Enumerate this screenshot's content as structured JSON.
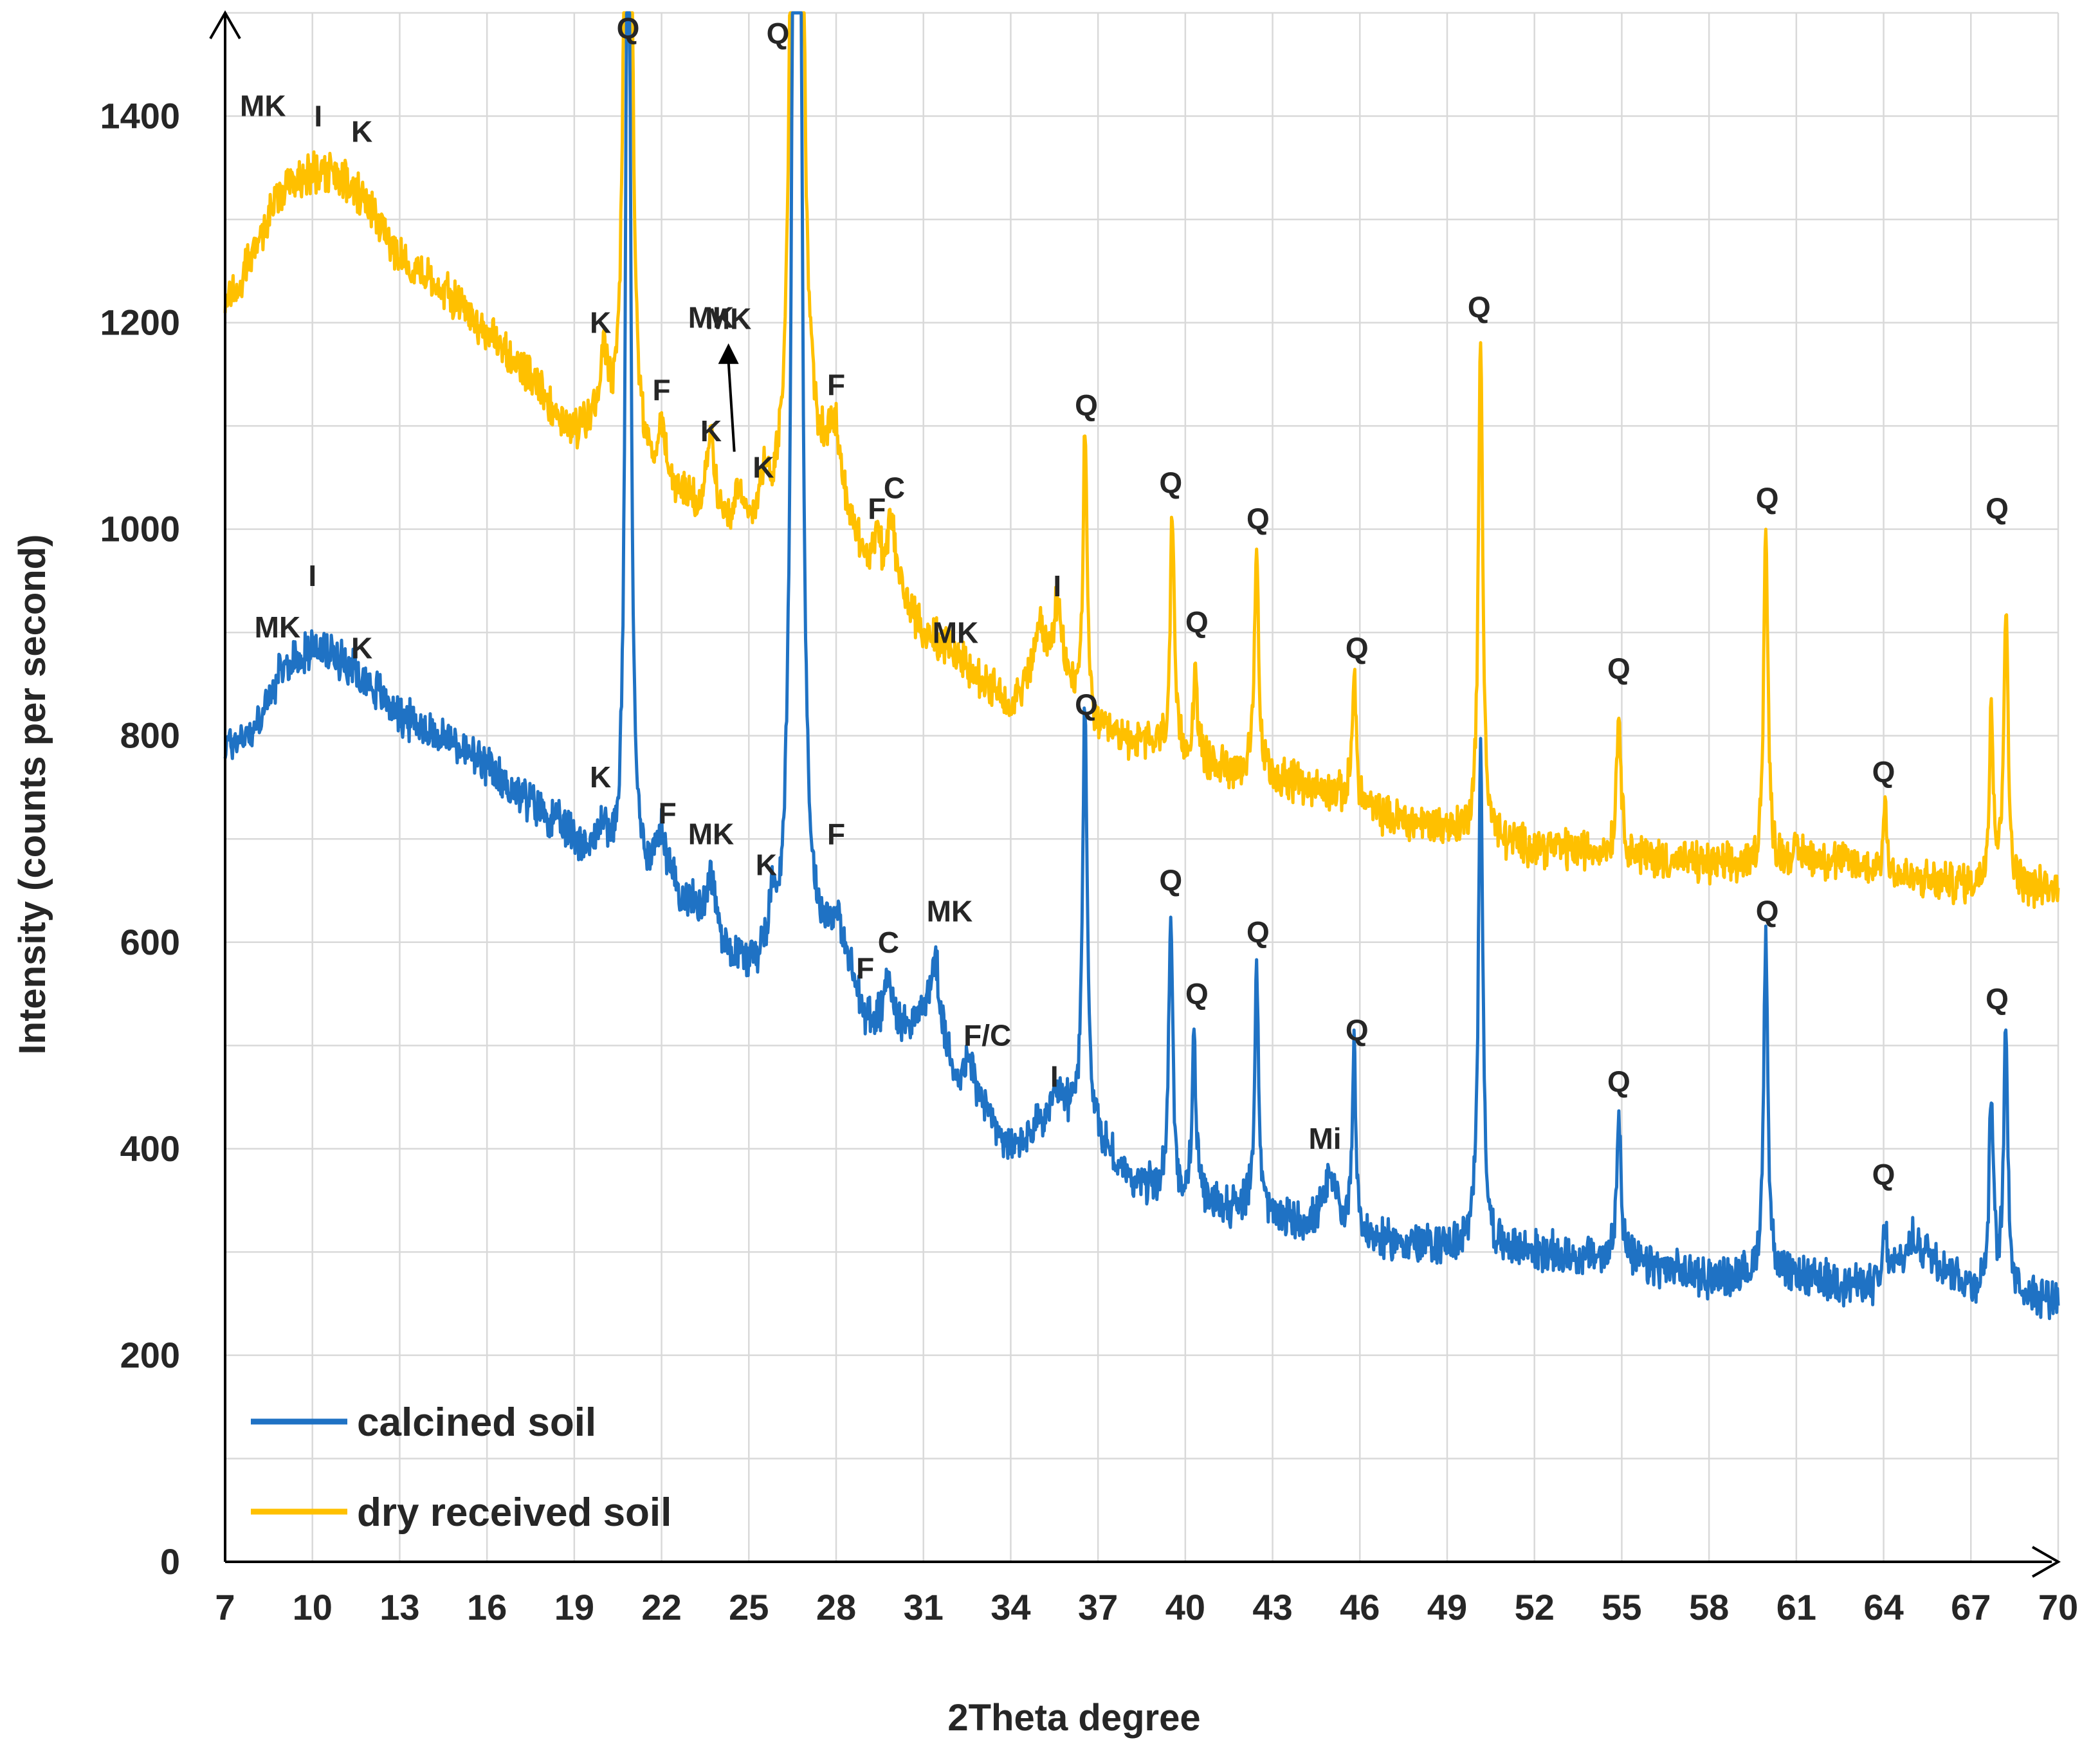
{
  "chart_data": {
    "type": "line",
    "xlabel": "2Theta degree",
    "ylabel": "Intensity (counts per second)",
    "xlim": [
      7,
      70
    ],
    "ylim": [
      0,
      1500
    ],
    "x_ticks": [
      "7",
      "10",
      "13",
      "16",
      "19",
      "22",
      "25",
      "28",
      "31",
      "34",
      "37",
      "40",
      "43",
      "46",
      "49",
      "52",
      "55",
      "58",
      "61",
      "64",
      "67",
      "70"
    ],
    "y_ticks": [
      "0",
      "200",
      "400",
      "600",
      "800",
      "1000",
      "1200",
      "1400"
    ],
    "grid": true,
    "legend_position": "bottom-left",
    "series": [
      {
        "name": "calcined soil",
        "color": "#1f72c4",
        "background": [
          [
            7,
            790
          ],
          [
            8,
            805
          ],
          [
            9,
            865
          ],
          [
            10,
            885
          ],
          [
            11,
            875
          ],
          [
            12,
            850
          ],
          [
            13,
            820
          ],
          [
            15,
            790
          ],
          [
            17,
            745
          ],
          [
            19,
            700
          ],
          [
            20.5,
            660
          ],
          [
            22,
            660
          ],
          [
            23,
            630
          ],
          [
            24,
            590
          ],
          [
            25,
            570
          ],
          [
            26,
            560
          ],
          [
            27,
            560
          ],
          [
            28,
            610
          ],
          [
            29,
            520
          ],
          [
            30,
            510
          ],
          [
            31,
            520
          ],
          [
            32,
            470
          ],
          [
            33,
            440
          ],
          [
            34,
            395
          ],
          [
            35,
            420
          ],
          [
            36,
            430
          ],
          [
            37,
            410
          ],
          [
            38,
            370
          ],
          [
            40,
            350
          ],
          [
            42,
            340
          ],
          [
            44,
            325
          ],
          [
            46,
            310
          ],
          [
            49,
            305
          ],
          [
            52,
            300
          ],
          [
            55,
            290
          ],
          [
            58,
            275
          ],
          [
            61,
            275
          ],
          [
            64,
            265
          ],
          [
            65,
            310
          ],
          [
            66,
            290
          ],
          [
            67,
            265
          ],
          [
            70,
            255
          ]
        ],
        "peaks": [
          [
            20.85,
            1230,
            0.09
          ],
          [
            26.65,
            2900,
            0.11
          ],
          [
            36.55,
            420,
            0.09
          ],
          [
            39.5,
            275,
            0.08
          ],
          [
            40.3,
            160,
            0.08
          ],
          [
            42.45,
            245,
            0.08
          ],
          [
            45.8,
            185,
            0.08
          ],
          [
            50.15,
            500,
            0.09
          ],
          [
            54.9,
            150,
            0.09
          ],
          [
            59.95,
            330,
            0.09
          ],
          [
            64.05,
            60,
            0.08
          ],
          [
            67.7,
            195,
            0.08
          ],
          [
            68.2,
            245,
            0.09
          ],
          [
            20.0,
            40,
            0.15
          ],
          [
            22.0,
            40,
            0.2
          ],
          [
            23.7,
            60,
            0.2
          ],
          [
            25.8,
            50,
            0.15
          ],
          [
            29.8,
            60,
            0.15
          ],
          [
            31.4,
            80,
            0.2
          ],
          [
            32.6,
            30,
            0.2
          ],
          [
            35.6,
            20,
            0.3
          ],
          [
            45.0,
            50,
            0.3
          ]
        ]
      },
      {
        "name": "dry received soil",
        "color": "#ffc000",
        "background": [
          [
            7,
            1215
          ],
          [
            8,
            1270
          ],
          [
            9,
            1330
          ],
          [
            10,
            1345
          ],
          [
            11,
            1340
          ],
          [
            12,
            1310
          ],
          [
            13,
            1265
          ],
          [
            15,
            1220
          ],
          [
            17,
            1160
          ],
          [
            19,
            1090
          ],
          [
            20,
            1100
          ],
          [
            21,
            1060
          ],
          [
            22,
            1040
          ],
          [
            23,
            1020
          ],
          [
            24,
            1000
          ],
          [
            25,
            990
          ],
          [
            26,
            1000
          ],
          [
            27,
            1040
          ],
          [
            28,
            1040
          ],
          [
            29,
            960
          ],
          [
            30,
            940
          ],
          [
            31,
            900
          ],
          [
            32,
            880
          ],
          [
            33,
            850
          ],
          [
            34,
            830
          ],
          [
            35,
            860
          ],
          [
            36,
            840
          ],
          [
            37,
            800
          ],
          [
            39,
            790
          ],
          [
            41,
            770
          ],
          [
            43,
            760
          ],
          [
            45,
            745
          ],
          [
            47,
            720
          ],
          [
            49,
            710
          ],
          [
            51,
            695
          ],
          [
            53,
            690
          ],
          [
            55,
            685
          ],
          [
            58,
            675
          ],
          [
            60,
            670
          ],
          [
            61,
            685
          ],
          [
            63,
            675
          ],
          [
            65,
            660
          ],
          [
            67,
            655
          ],
          [
            70,
            650
          ]
        ],
        "peaks": [
          [
            20.85,
            1800,
            0.09
          ],
          [
            26.65,
            2900,
            0.11
          ],
          [
            36.55,
            280,
            0.08
          ],
          [
            39.55,
            225,
            0.08
          ],
          [
            40.35,
            90,
            0.08
          ],
          [
            42.45,
            220,
            0.08
          ],
          [
            45.8,
            130,
            0.08
          ],
          [
            50.15,
            480,
            0.09
          ],
          [
            54.9,
            140,
            0.09
          ],
          [
            59.95,
            330,
            0.09
          ],
          [
            64.05,
            65,
            0.08
          ],
          [
            67.7,
            180,
            0.08
          ],
          [
            68.2,
            270,
            0.09
          ],
          [
            20.0,
            60,
            0.15
          ],
          [
            22.0,
            50,
            0.15
          ],
          [
            23.7,
            80,
            0.15
          ],
          [
            24.6,
            40,
            0.15
          ],
          [
            25.5,
            40,
            0.2
          ],
          [
            27.9,
            50,
            0.2
          ],
          [
            29.4,
            40,
            0.15
          ],
          [
            29.9,
            60,
            0.15
          ],
          [
            35.0,
            40,
            0.2
          ],
          [
            35.6,
            70,
            0.2
          ]
        ]
      }
    ],
    "annotations": [
      {
        "text": "Q",
        "x": 20.85,
        "y": 1475
      },
      {
        "text": "Q",
        "x": 26.0,
        "y": 1470
      },
      {
        "text": "MK",
        "x": 8.3,
        "y": 1400
      },
      {
        "text": "I",
        "x": 10.2,
        "y": 1390
      },
      {
        "text": "K",
        "x": 11.7,
        "y": 1375
      },
      {
        "text": "K",
        "x": 19.9,
        "y": 1190
      },
      {
        "text": "MK",
        "x": 23.7,
        "y": 1195
      },
      {
        "text": "F",
        "x": 22.0,
        "y": 1125
      },
      {
        "text": "K",
        "x": 23.7,
        "y": 1085
      },
      {
        "text": "F",
        "x": 28.0,
        "y": 1130
      },
      {
        "text": "K",
        "x": 25.5,
        "y": 1050
      },
      {
        "text": "F",
        "x": 29.4,
        "y": 1010
      },
      {
        "text": "C",
        "x": 30.0,
        "y": 1030
      },
      {
        "text": "Q",
        "x": 36.6,
        "y": 1110
      },
      {
        "text": "Q",
        "x": 39.5,
        "y": 1035
      },
      {
        "text": "Q",
        "x": 42.5,
        "y": 1000
      },
      {
        "text": "Q",
        "x": 40.4,
        "y": 900
      },
      {
        "text": "MK",
        "x": 32.1,
        "y": 890
      },
      {
        "text": "I",
        "x": 35.6,
        "y": 935
      },
      {
        "text": "Q",
        "x": 50.1,
        "y": 1205
      },
      {
        "text": "Q",
        "x": 45.9,
        "y": 875
      },
      {
        "text": "Q",
        "x": 60.0,
        "y": 1020
      },
      {
        "text": "Q",
        "x": 54.9,
        "y": 855
      },
      {
        "text": "Q",
        "x": 67.9,
        "y": 1010
      },
      {
        "text": "Q",
        "x": 64.0,
        "y": 755
      },
      {
        "text": "MK",
        "x": 8.8,
        "y": 895
      },
      {
        "text": "I",
        "x": 10.0,
        "y": 945
      },
      {
        "text": "K",
        "x": 11.7,
        "y": 875
      },
      {
        "text": "Q",
        "x": 36.6,
        "y": 820
      },
      {
        "text": "K",
        "x": 19.9,
        "y": 750
      },
      {
        "text": "F",
        "x": 22.2,
        "y": 715
      },
      {
        "text": "MK",
        "x": 23.7,
        "y": 695
      },
      {
        "text": "K",
        "x": 25.6,
        "y": 665
      },
      {
        "text": "F",
        "x": 28.0,
        "y": 695
      },
      {
        "text": "MK",
        "x": 31.9,
        "y": 620
      },
      {
        "text": "F",
        "x": 29.0,
        "y": 565
      },
      {
        "text": "C",
        "x": 29.8,
        "y": 590
      },
      {
        "text": "F/C",
        "x": 33.2,
        "y": 500
      },
      {
        "text": "I",
        "x": 35.5,
        "y": 460
      },
      {
        "text": "Q",
        "x": 39.5,
        "y": 650
      },
      {
        "text": "Q",
        "x": 42.5,
        "y": 600
      },
      {
        "text": "Q",
        "x": 40.4,
        "y": 540
      },
      {
        "text": "Mi",
        "x": 44.8,
        "y": 400
      },
      {
        "text": "Q",
        "x": 45.9,
        "y": 505
      },
      {
        "text": "Q",
        "x": 54.9,
        "y": 455
      },
      {
        "text": "Q",
        "x": 60.0,
        "y": 620
      },
      {
        "text": "Q",
        "x": 64.0,
        "y": 365
      },
      {
        "text": "Q",
        "x": 67.9,
        "y": 535
      }
    ],
    "arrow": {
      "label": "MK",
      "x_from": 24.5,
      "x_to": 24.3,
      "y_from": 1075,
      "y_to": 1175
    }
  }
}
